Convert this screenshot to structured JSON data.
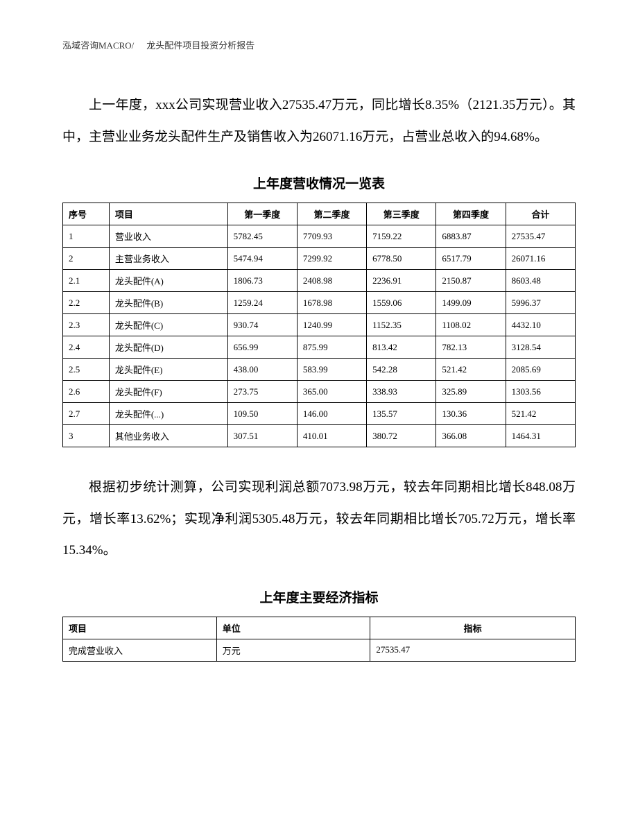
{
  "header": {
    "company": "泓域咨询MACRO/",
    "docTitle": "龙头配件项目投资分析报告"
  },
  "paragraph1": "上一年度，xxx公司实现营业收入27535.47万元，同比增长8.35%（2121.35万元）。其中，主营业业务龙头配件生产及销售收入为26071.16万元，占营业总收入的94.68%。",
  "table1": {
    "title": "上年度营收情况一览表",
    "headers": {
      "seq": "序号",
      "item": "项目",
      "q1": "第一季度",
      "q2": "第二季度",
      "q3": "第三季度",
      "q4": "第四季度",
      "total": "合计"
    },
    "rows": [
      {
        "seq": "1",
        "item": "营业收入",
        "q1": "5782.45",
        "q2": "7709.93",
        "q3": "7159.22",
        "q4": "6883.87",
        "total": "27535.47"
      },
      {
        "seq": "2",
        "item": "主营业务收入",
        "q1": "5474.94",
        "q2": "7299.92",
        "q3": "6778.50",
        "q4": "6517.79",
        "total": "26071.16"
      },
      {
        "seq": "2.1",
        "item": "龙头配件(A)",
        "q1": "1806.73",
        "q2": "2408.98",
        "q3": "2236.91",
        "q4": "2150.87",
        "total": "8603.48"
      },
      {
        "seq": "2.2",
        "item": "龙头配件(B)",
        "q1": "1259.24",
        "q2": "1678.98",
        "q3": "1559.06",
        "q4": "1499.09",
        "total": "5996.37"
      },
      {
        "seq": "2.3",
        "item": "龙头配件(C)",
        "q1": "930.74",
        "q2": "1240.99",
        "q3": "1152.35",
        "q4": "1108.02",
        "total": "4432.10"
      },
      {
        "seq": "2.4",
        "item": "龙头配件(D)",
        "q1": "656.99",
        "q2": "875.99",
        "q3": "813.42",
        "q4": "782.13",
        "total": "3128.54"
      },
      {
        "seq": "2.5",
        "item": "龙头配件(E)",
        "q1": "438.00",
        "q2": "583.99",
        "q3": "542.28",
        "q4": "521.42",
        "total": "2085.69"
      },
      {
        "seq": "2.6",
        "item": "龙头配件(F)",
        "q1": "273.75",
        "q2": "365.00",
        "q3": "338.93",
        "q4": "325.89",
        "total": "1303.56"
      },
      {
        "seq": "2.7",
        "item": "龙头配件(...)",
        "q1": "109.50",
        "q2": "146.00",
        "q3": "135.57",
        "q4": "130.36",
        "total": "521.42"
      },
      {
        "seq": "3",
        "item": "其他业务收入",
        "q1": "307.51",
        "q2": "410.01",
        "q3": "380.72",
        "q4": "366.08",
        "total": "1464.31"
      }
    ]
  },
  "paragraph2": "根据初步统计测算，公司实现利润总额7073.98万元，较去年同期相比增长848.08万元，增长率13.62%；实现净利润5305.48万元，较去年同期相比增长705.72万元，增长率15.34%。",
  "table2": {
    "title": "上年度主要经济指标",
    "headers": {
      "item": "项目",
      "unit": "单位",
      "value": "指标"
    },
    "rows": [
      {
        "item": "完成营业收入",
        "unit": "万元",
        "value": "27535.47"
      }
    ]
  }
}
